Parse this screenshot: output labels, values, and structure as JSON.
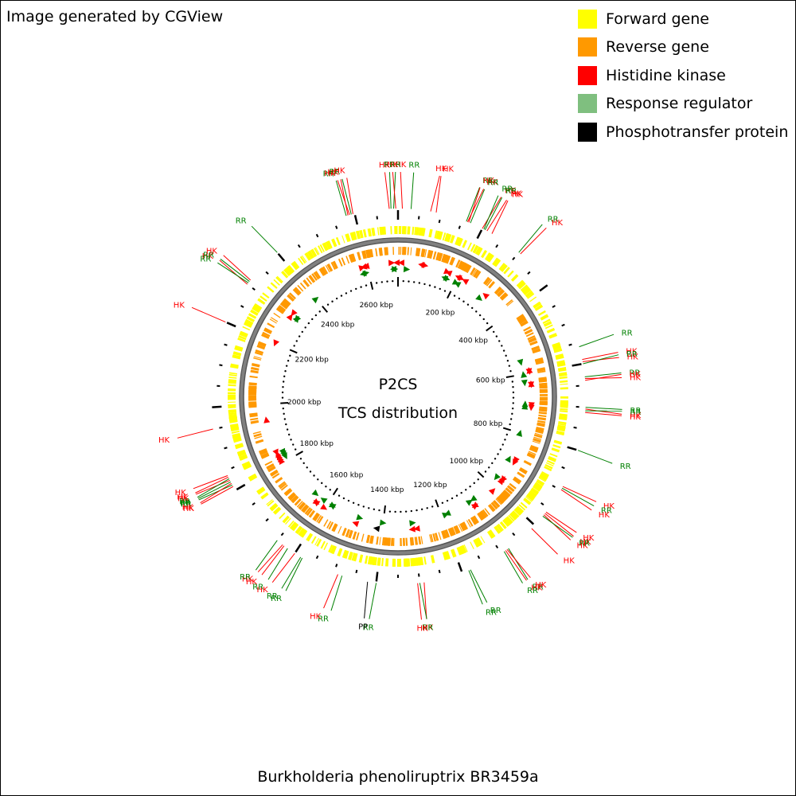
{
  "credit": "Image generated by CGView",
  "footer": "Burkholderia phenoliruptrix BR3459a",
  "center": {
    "line1": "P2CS",
    "line2": "TCS distribution"
  },
  "legend": [
    {
      "label": "Forward gene",
      "color": "#ffff00"
    },
    {
      "label": "Reverse gene",
      "color": "#ff9900"
    },
    {
      "label": "Histidine kinase",
      "color": "#ff0000"
    },
    {
      "label": "Response regulator",
      "color": "#7fbf7f"
    },
    {
      "label": "Phosphotransfer protein",
      "color": "#000000"
    }
  ],
  "colors": {
    "forward": "#ffff00",
    "reverse": "#ff9900",
    "hk": "#ff0000",
    "rr": "#008000",
    "pp": "#000000",
    "backbone": "#808080"
  },
  "genome_kbp": 2700,
  "kbp_ticks": [
    {
      "kbp": 200,
      "label": "200 kbp"
    },
    {
      "kbp": 400,
      "label": "400 kbp"
    },
    {
      "kbp": 600,
      "label": "600 kbp"
    },
    {
      "kbp": 800,
      "label": "800 kbp"
    },
    {
      "kbp": 1000,
      "label": "1000 kbp"
    },
    {
      "kbp": 1200,
      "label": "1200 kbp"
    },
    {
      "kbp": 1400,
      "label": "1400 kbp"
    },
    {
      "kbp": 1600,
      "label": "1600 kbp"
    },
    {
      "kbp": 1800,
      "label": "1800 kbp"
    },
    {
      "kbp": 2000,
      "label": "2000 kbp"
    },
    {
      "kbp": 2200,
      "label": "2200 kbp"
    },
    {
      "kbp": 2400,
      "label": "2400 kbp"
    },
    {
      "kbp": 2600,
      "label": "2600 kbp"
    }
  ],
  "features": [
    {
      "label": "HK",
      "type": "hk",
      "kbp": 10
    },
    {
      "label": "RR",
      "type": "rr",
      "kbp": 30
    },
    {
      "label": "HK",
      "type": "hk",
      "kbp": 75
    },
    {
      "label": "HK",
      "type": "hk",
      "kbp": 88
    },
    {
      "label": "RR",
      "type": "rr",
      "kbp": 160
    },
    {
      "label": "HK",
      "type": "hk",
      "kbp": 163
    },
    {
      "label": "HK",
      "type": "hk",
      "kbp": 166
    },
    {
      "label": "RR",
      "type": "rr",
      "kbp": 170
    },
    {
      "label": "HK",
      "type": "hk",
      "kbp": 200
    },
    {
      "label": "RR",
      "type": "rr",
      "kbp": 204
    },
    {
      "label": "RR",
      "type": "rr",
      "kbp": 207
    },
    {
      "label": "HK",
      "type": "hk",
      "kbp": 212
    },
    {
      "label": "HK",
      "type": "hk",
      "kbp": 225
    },
    {
      "label": "RR",
      "type": "rr",
      "kbp": 300
    },
    {
      "label": "HK",
      "type": "hk",
      "kbp": 305
    },
    {
      "label": "RR",
      "type": "rr",
      "kbp": 560
    },
    {
      "label": "HK",
      "type": "hk",
      "kbp": 590
    },
    {
      "label": "HK",
      "type": "hk",
      "kbp": 595
    },
    {
      "label": "RR",
      "type": "rr",
      "kbp": 600
    },
    {
      "label": "RR",
      "type": "rr",
      "kbp": 630
    },
    {
      "label": "HK",
      "type": "hk",
      "kbp": 634
    },
    {
      "label": "HK",
      "type": "hk",
      "kbp": 638
    },
    {
      "label": "RR",
      "type": "rr",
      "kbp": 700
    },
    {
      "label": "HK",
      "type": "hk",
      "kbp": 704
    },
    {
      "label": "RR",
      "type": "rr",
      "kbp": 708
    },
    {
      "label": "HK",
      "type": "hk",
      "kbp": 712
    },
    {
      "label": "RR",
      "type": "rr",
      "kbp": 800
    },
    {
      "label": "HK",
      "type": "hk",
      "kbp": 890
    },
    {
      "label": "RR",
      "type": "rr",
      "kbp": 894
    },
    {
      "label": "HK",
      "type": "hk",
      "kbp": 898
    },
    {
      "label": "HK",
      "type": "hk",
      "kbp": 960
    },
    {
      "label": "HK",
      "type": "hk",
      "kbp": 964
    },
    {
      "label": "HK",
      "type": "hk",
      "kbp": 968
    },
    {
      "label": "RR",
      "type": "rr",
      "kbp": 972
    },
    {
      "label": "HK",
      "type": "hk",
      "kbp": 1010
    },
    {
      "label": "RR",
      "type": "rr",
      "kbp": 1080
    },
    {
      "label": "HK",
      "type": "hk",
      "kbp": 1084
    },
    {
      "label": "HK",
      "type": "hk",
      "kbp": 1088
    },
    {
      "label": "RR",
      "type": "rr",
      "kbp": 1092
    },
    {
      "label": "RR",
      "type": "rr",
      "kbp": 1180
    },
    {
      "label": "RR",
      "type": "rr",
      "kbp": 1184
    },
    {
      "label": "HK",
      "type": "hk",
      "kbp": 1290
    },
    {
      "label": "RR",
      "type": "rr",
      "kbp": 1300
    },
    {
      "label": "HK",
      "type": "hk",
      "kbp": 1305
    },
    {
      "label": "RR",
      "type": "rr",
      "kbp": 1400
    },
    {
      "label": "PP",
      "type": "pp",
      "kbp": 1420
    },
    {
      "label": "RR",
      "type": "rr",
      "kbp": 1480
    },
    {
      "label": "HK",
      "type": "hk",
      "kbp": 1490
    },
    {
      "label": "RR",
      "type": "rr",
      "kbp": 1580
    },
    {
      "label": "RR",
      "type": "rr",
      "kbp": 1584
    },
    {
      "label": "HK",
      "type": "hk",
      "kbp": 1600
    },
    {
      "label": "RR",
      "type": "rr",
      "kbp": 1620
    },
    {
      "label": "HK",
      "type": "hk",
      "kbp": 1630
    },
    {
      "label": "HK",
      "type": "hk",
      "kbp": 1634
    },
    {
      "label": "RR",
      "type": "rr",
      "kbp": 1650
    },
    {
      "label": "HK",
      "type": "hk",
      "kbp": 1810
    },
    {
      "label": "RR",
      "type": "rr",
      "kbp": 1814
    },
    {
      "label": "HK",
      "type": "hk",
      "kbp": 1818
    },
    {
      "label": "RR",
      "type": "rr",
      "kbp": 1822
    },
    {
      "label": "HK",
      "type": "hk",
      "kbp": 1826
    },
    {
      "label": "RR",
      "type": "rr",
      "kbp": 1830
    },
    {
      "label": "HK",
      "type": "hk",
      "kbp": 1834
    },
    {
      "label": "HK",
      "type": "hk",
      "kbp": 1838
    },
    {
      "label": "HK",
      "type": "hk",
      "kbp": 1950
    },
    {
      "label": "HK",
      "type": "hk",
      "kbp": 2200
    },
    {
      "label": "HK",
      "type": "hk",
      "kbp": 2300
    },
    {
      "label": "RR",
      "type": "rr",
      "kbp": 2304
    },
    {
      "label": "RR",
      "type": "rr",
      "kbp": 2308
    },
    {
      "label": "HK",
      "type": "hk",
      "kbp": 2312
    },
    {
      "label": "RR",
      "type": "rr",
      "kbp": 2400
    },
    {
      "label": "RR",
      "type": "rr",
      "kbp": 2580
    },
    {
      "label": "HK",
      "type": "hk",
      "kbp": 2584
    },
    {
      "label": "HK",
      "type": "hk",
      "kbp": 2588
    },
    {
      "label": "RR",
      "type": "rr",
      "kbp": 2592
    },
    {
      "label": "HK",
      "type": "hk",
      "kbp": 2596
    },
    {
      "label": "HK",
      "type": "hk",
      "kbp": 2680
    },
    {
      "label": "RR",
      "type": "rr",
      "kbp": 2684
    },
    {
      "label": "RR",
      "type": "rr",
      "kbp": 2690
    },
    {
      "label": "HK",
      "type": "hk",
      "kbp": 2695
    }
  ]
}
